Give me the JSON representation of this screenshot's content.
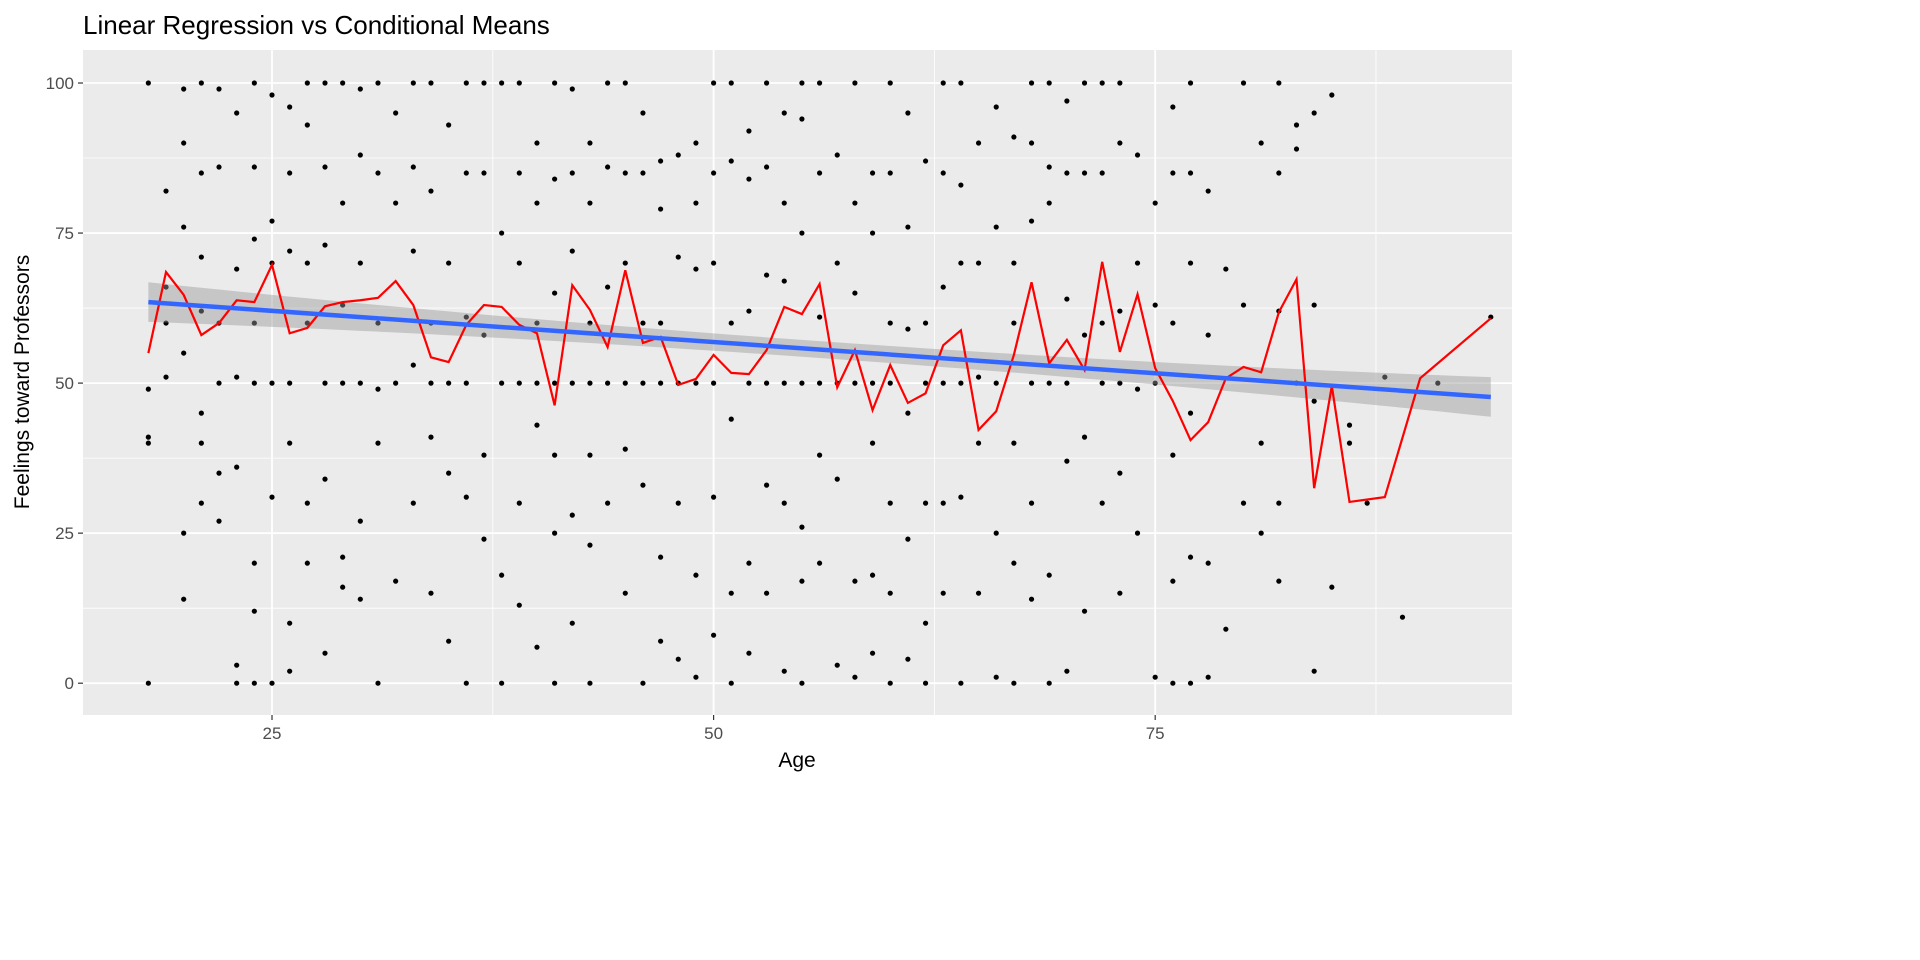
{
  "chart_data": {
    "type": "scatter",
    "title": "Linear Regression vs Conditional Means",
    "xlabel": "Age",
    "ylabel": "Feelings toward Professors",
    "xlim": [
      14.3,
      95.2
    ],
    "ylim": [
      -5.3,
      105.5
    ],
    "xticks": [
      25,
      50,
      75
    ],
    "yticks": [
      0,
      25,
      50,
      75,
      100
    ],
    "grid": true,
    "colors": {
      "points": "#000000",
      "conditional_means": "#ff0000",
      "regression": "#3366ff",
      "ci_band": "#999999",
      "panel": "#ebebeb",
      "gridline": "#ffffff"
    },
    "regression": {
      "intercept": 67.24,
      "slope": -0.208,
      "ci_halfwidth_ends": 3.3,
      "ci_halfwidth_center": 1.4,
      "x_range": [
        18,
        94
      ]
    },
    "conditional_means": {
      "x": [
        18,
        19,
        20,
        21,
        22,
        23,
        24,
        25,
        26,
        27,
        28,
        29,
        30,
        31,
        32,
        33,
        34,
        35,
        36,
        37,
        38,
        39,
        40,
        41,
        42,
        43,
        44,
        45,
        46,
        47,
        48,
        49,
        50,
        51,
        52,
        53,
        54,
        55,
        56,
        57,
        58,
        59,
        60,
        61,
        62,
        63,
        64,
        65,
        66,
        67,
        68,
        69,
        70,
        71,
        72,
        73,
        74,
        75,
        76,
        77,
        78,
        79,
        80,
        81,
        82,
        83,
        84,
        85,
        86,
        88,
        90,
        94
      ],
      "y": [
        55,
        68.5,
        64.7,
        58,
        60,
        63.8,
        63.5,
        69.7,
        58.3,
        59.2,
        62.8,
        63.5,
        63.8,
        64.2,
        67,
        63,
        54.3,
        53.5,
        59.7,
        63,
        62.7,
        59.7,
        58.3,
        46.3,
        66.3,
        62.2,
        56,
        68.8,
        56.7,
        57.7,
        49.7,
        50.7,
        54.7,
        51.7,
        51.5,
        55.5,
        62.7,
        61.5,
        66.5,
        49.3,
        55.5,
        45.5,
        53,
        46.7,
        48.3,
        56.3,
        58.8,
        42.2,
        45.3,
        54.7,
        66.8,
        53.3,
        57.2,
        52.2,
        70.2,
        55.2,
        64.8,
        52.5,
        47,
        40.5,
        43.5,
        50.8,
        52.7,
        51.8,
        61.8,
        67.3,
        32.5,
        49.5,
        30.2,
        31,
        50.8,
        60.8
      ]
    },
    "points": [
      [
        18,
        100
      ],
      [
        18,
        41
      ],
      [
        18,
        49
      ],
      [
        18,
        0
      ],
      [
        18,
        40
      ],
      [
        19,
        82
      ],
      [
        19,
        66
      ],
      [
        19,
        60
      ],
      [
        19,
        51
      ],
      [
        20,
        90
      ],
      [
        20,
        76
      ],
      [
        20,
        99
      ],
      [
        20,
        55
      ],
      [
        20,
        14
      ],
      [
        20,
        25
      ],
      [
        21,
        100
      ],
      [
        21,
        85
      ],
      [
        21,
        71
      ],
      [
        21,
        62
      ],
      [
        21,
        45
      ],
      [
        21,
        30
      ],
      [
        21,
        40
      ],
      [
        22,
        99
      ],
      [
        22,
        86
      ],
      [
        22,
        50
      ],
      [
        22,
        35
      ],
      [
        22,
        27
      ],
      [
        22,
        60
      ],
      [
        23,
        95
      ],
      [
        23,
        69
      ],
      [
        23,
        51
      ],
      [
        23,
        0
      ],
      [
        23,
        3
      ],
      [
        23,
        36
      ],
      [
        24,
        100
      ],
      [
        24,
        86
      ],
      [
        24,
        74
      ],
      [
        24,
        60
      ],
      [
        24,
        50
      ],
      [
        24,
        20
      ],
      [
        24,
        12
      ],
      [
        24,
        0
      ],
      [
        25,
        98
      ],
      [
        25,
        77
      ],
      [
        25,
        70
      ],
      [
        25,
        50
      ],
      [
        25,
        31
      ],
      [
        25,
        0
      ],
      [
        26,
        96
      ],
      [
        26,
        85
      ],
      [
        26,
        72
      ],
      [
        26,
        50
      ],
      [
        26,
        40
      ],
      [
        26,
        10
      ],
      [
        26,
        2
      ],
      [
        27,
        100
      ],
      [
        27,
        93
      ],
      [
        27,
        70
      ],
      [
        27,
        60
      ],
      [
        27,
        30
      ],
      [
        27,
        20
      ],
      [
        28,
        100
      ],
      [
        28,
        86
      ],
      [
        28,
        73
      ],
      [
        28,
        50
      ],
      [
        28,
        34
      ],
      [
        28,
        5
      ],
      [
        29,
        100
      ],
      [
        29,
        80
      ],
      [
        29,
        63
      ],
      [
        29,
        50
      ],
      [
        29,
        21
      ],
      [
        29,
        16
      ],
      [
        30,
        99
      ],
      [
        30,
        88
      ],
      [
        30,
        70
      ],
      [
        30,
        50
      ],
      [
        30,
        27
      ],
      [
        30,
        14
      ],
      [
        31,
        100
      ],
      [
        31,
        85
      ],
      [
        31,
        60
      ],
      [
        31,
        49
      ],
      [
        31,
        40
      ],
      [
        31,
        0
      ],
      [
        32,
        95
      ],
      [
        32,
        80
      ],
      [
        32,
        50
      ],
      [
        32,
        17
      ],
      [
        33,
        100
      ],
      [
        33,
        86
      ],
      [
        33,
        72
      ],
      [
        33,
        53
      ],
      [
        33,
        30
      ],
      [
        34,
        100
      ],
      [
        34,
        82
      ],
      [
        34,
        60
      ],
      [
        34,
        50
      ],
      [
        34,
        41
      ],
      [
        34,
        15
      ],
      [
        35,
        93
      ],
      [
        35,
        70
      ],
      [
        35,
        50
      ],
      [
        35,
        35
      ],
      [
        35,
        7
      ],
      [
        36,
        100
      ],
      [
        36,
        85
      ],
      [
        36,
        61
      ],
      [
        36,
        50
      ],
      [
        36,
        31
      ],
      [
        36,
        0
      ],
      [
        37,
        100
      ],
      [
        37,
        85
      ],
      [
        37,
        58
      ],
      [
        37,
        38
      ],
      [
        37,
        24
      ],
      [
        38,
        100
      ],
      [
        38,
        75
      ],
      [
        38,
        50
      ],
      [
        38,
        18
      ],
      [
        38,
        0
      ],
      [
        39,
        100
      ],
      [
        39,
        85
      ],
      [
        39,
        70
      ],
      [
        39,
        50
      ],
      [
        39,
        30
      ],
      [
        39,
        13
      ],
      [
        40,
        90
      ],
      [
        40,
        80
      ],
      [
        40,
        60
      ],
      [
        40,
        50
      ],
      [
        40,
        43
      ],
      [
        40,
        6
      ],
      [
        41,
        100
      ],
      [
        41,
        84
      ],
      [
        41,
        65
      ],
      [
        41,
        50
      ],
      [
        41,
        38
      ],
      [
        41,
        25
      ],
      [
        41,
        0
      ],
      [
        42,
        99
      ],
      [
        42,
        85
      ],
      [
        42,
        72
      ],
      [
        42,
        50
      ],
      [
        42,
        28
      ],
      [
        42,
        10
      ],
      [
        43,
        90
      ],
      [
        43,
        80
      ],
      [
        43,
        60
      ],
      [
        43,
        50
      ],
      [
        43,
        38
      ],
      [
        43,
        23
      ],
      [
        43,
        0
      ],
      [
        44,
        100
      ],
      [
        44,
        86
      ],
      [
        44,
        66
      ],
      [
        44,
        50
      ],
      [
        44,
        30
      ],
      [
        45,
        100
      ],
      [
        45,
        85
      ],
      [
        45,
        70
      ],
      [
        45,
        50
      ],
      [
        45,
        39
      ],
      [
        45,
        15
      ],
      [
        46,
        95
      ],
      [
        46,
        85
      ],
      [
        46,
        60
      ],
      [
        46,
        50
      ],
      [
        46,
        33
      ],
      [
        46,
        0
      ],
      [
        47,
        87
      ],
      [
        47,
        79
      ],
      [
        47,
        60
      ],
      [
        47,
        50
      ],
      [
        47,
        21
      ],
      [
        47,
        7
      ],
      [
        48,
        88
      ],
      [
        48,
        71
      ],
      [
        48,
        50
      ],
      [
        48,
        30
      ],
      [
        48,
        4
      ],
      [
        49,
        90
      ],
      [
        49,
        80
      ],
      [
        49,
        69
      ],
      [
        49,
        50
      ],
      [
        49,
        18
      ],
      [
        49,
        1
      ],
      [
        50,
        100
      ],
      [
        50,
        85
      ],
      [
        50,
        70
      ],
      [
        50,
        50
      ],
      [
        50,
        31
      ],
      [
        50,
        8
      ],
      [
        51,
        100
      ],
      [
        51,
        87
      ],
      [
        51,
        60
      ],
      [
        51,
        44
      ],
      [
        51,
        15
      ],
      [
        51,
        0
      ],
      [
        52,
        92
      ],
      [
        52,
        84
      ],
      [
        52,
        62
      ],
      [
        52,
        50
      ],
      [
        52,
        20
      ],
      [
        52,
        5
      ],
      [
        53,
        100
      ],
      [
        53,
        86
      ],
      [
        53,
        68
      ],
      [
        53,
        50
      ],
      [
        53,
        33
      ],
      [
        53,
        15
      ],
      [
        54,
        95
      ],
      [
        54,
        80
      ],
      [
        54,
        67
      ],
      [
        54,
        50
      ],
      [
        54,
        30
      ],
      [
        54,
        2
      ],
      [
        55,
        100
      ],
      [
        55,
        94
      ],
      [
        55,
        75
      ],
      [
        55,
        50
      ],
      [
        55,
        26
      ],
      [
        55,
        17
      ],
      [
        55,
        0
      ],
      [
        56,
        100
      ],
      [
        56,
        85
      ],
      [
        56,
        61
      ],
      [
        56,
        50
      ],
      [
        56,
        38
      ],
      [
        56,
        20
      ],
      [
        57,
        88
      ],
      [
        57,
        70
      ],
      [
        57,
        50
      ],
      [
        57,
        34
      ],
      [
        57,
        3
      ],
      [
        58,
        100
      ],
      [
        58,
        80
      ],
      [
        58,
        65
      ],
      [
        58,
        50
      ],
      [
        58,
        17
      ],
      [
        58,
        1
      ],
      [
        59,
        85
      ],
      [
        59,
        75
      ],
      [
        59,
        50
      ],
      [
        59,
        40
      ],
      [
        59,
        18
      ],
      [
        59,
        5
      ],
      [
        60,
        100
      ],
      [
        60,
        85
      ],
      [
        60,
        60
      ],
      [
        60,
        50
      ],
      [
        60,
        30
      ],
      [
        60,
        15
      ],
      [
        60,
        0
      ],
      [
        61,
        95
      ],
      [
        61,
        76
      ],
      [
        61,
        59
      ],
      [
        61,
        45
      ],
      [
        61,
        24
      ],
      [
        61,
        4
      ],
      [
        62,
        87
      ],
      [
        62,
        60
      ],
      [
        62,
        50
      ],
      [
        62,
        30
      ],
      [
        62,
        10
      ],
      [
        62,
        0
      ],
      [
        63,
        100
      ],
      [
        63,
        85
      ],
      [
        63,
        66
      ],
      [
        63,
        50
      ],
      [
        63,
        30
      ],
      [
        63,
        15
      ],
      [
        64,
        100
      ],
      [
        64,
        83
      ],
      [
        64,
        70
      ],
      [
        64,
        50
      ],
      [
        64,
        31
      ],
      [
        64,
        0
      ],
      [
        65,
        90
      ],
      [
        65,
        70
      ],
      [
        65,
        51
      ],
      [
        65,
        40
      ],
      [
        65,
        15
      ],
      [
        66,
        96
      ],
      [
        66,
        76
      ],
      [
        66,
        50
      ],
      [
        66,
        25
      ],
      [
        66,
        1
      ],
      [
        67,
        91
      ],
      [
        67,
        70
      ],
      [
        67,
        60
      ],
      [
        67,
        40
      ],
      [
        67,
        20
      ],
      [
        67,
        0
      ],
      [
        68,
        100
      ],
      [
        68,
        90
      ],
      [
        68,
        77
      ],
      [
        68,
        50
      ],
      [
        68,
        30
      ],
      [
        68,
        14
      ],
      [
        69,
        100
      ],
      [
        69,
        86
      ],
      [
        69,
        80
      ],
      [
        69,
        50
      ],
      [
        69,
        18
      ],
      [
        69,
        0
      ],
      [
        70,
        97
      ],
      [
        70,
        85
      ],
      [
        70,
        64
      ],
      [
        70,
        50
      ],
      [
        70,
        37
      ],
      [
        70,
        2
      ],
      [
        71,
        100
      ],
      [
        71,
        85
      ],
      [
        71,
        58
      ],
      [
        71,
        41
      ],
      [
        71,
        12
      ],
      [
        72,
        100
      ],
      [
        72,
        85
      ],
      [
        72,
        60
      ],
      [
        72,
        50
      ],
      [
        72,
        30
      ],
      [
        73,
        100
      ],
      [
        73,
        90
      ],
      [
        73,
        62
      ],
      [
        73,
        50
      ],
      [
        73,
        35
      ],
      [
        73,
        15
      ],
      [
        74,
        88
      ],
      [
        74,
        70
      ],
      [
        74,
        49
      ],
      [
        74,
        25
      ],
      [
        75,
        80
      ],
      [
        75,
        63
      ],
      [
        75,
        50
      ],
      [
        75,
        1
      ],
      [
        76,
        96
      ],
      [
        76,
        85
      ],
      [
        76,
        60
      ],
      [
        76,
        38
      ],
      [
        76,
        17
      ],
      [
        76,
        0
      ],
      [
        77,
        100
      ],
      [
        77,
        85
      ],
      [
        77,
        70
      ],
      [
        77,
        45
      ],
      [
        77,
        21
      ],
      [
        77,
        0
      ],
      [
        78,
        82
      ],
      [
        78,
        58
      ],
      [
        78,
        20
      ],
      [
        78,
        1
      ],
      [
        79,
        69
      ],
      [
        79,
        9
      ],
      [
        80,
        100
      ],
      [
        80,
        63
      ],
      [
        80,
        30
      ],
      [
        81,
        90
      ],
      [
        81,
        40
      ],
      [
        81,
        25
      ],
      [
        82,
        100
      ],
      [
        82,
        85
      ],
      [
        82,
        62
      ],
      [
        82,
        30
      ],
      [
        82,
        17
      ],
      [
        83,
        93
      ],
      [
        83,
        89
      ],
      [
        83,
        50
      ],
      [
        84,
        95
      ],
      [
        84,
        63
      ],
      [
        84,
        47
      ],
      [
        84,
        2
      ],
      [
        85,
        98
      ],
      [
        85,
        16
      ],
      [
        86,
        43
      ],
      [
        86,
        40
      ],
      [
        87,
        30
      ],
      [
        88,
        51
      ],
      [
        89,
        11
      ],
      [
        91,
        50
      ],
      [
        94,
        61
      ]
    ]
  }
}
